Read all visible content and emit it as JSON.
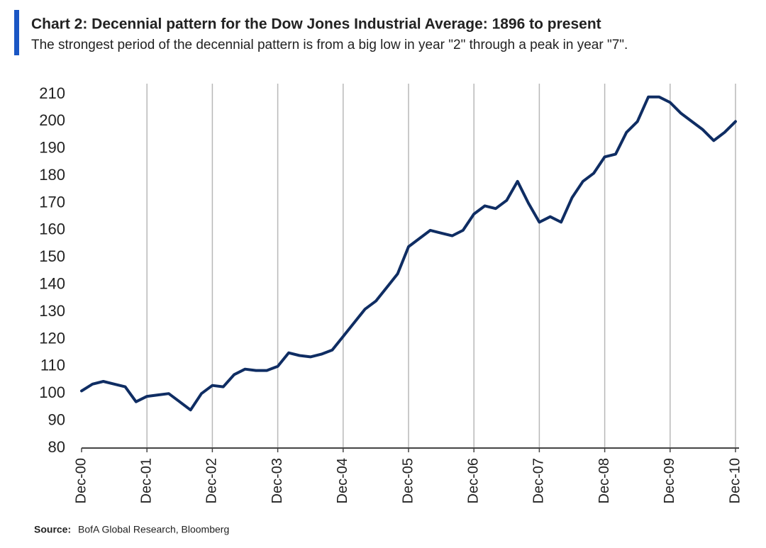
{
  "chart_data": {
    "type": "line",
    "title": "Chart 2: Decennial pattern for the Dow Jones Industrial Average: 1896 to present",
    "subtitle": "The strongest period of the decennial pattern is from a big low in year \"2\" through a peak in year \"7\".",
    "source_label": "Source:",
    "source": "BofA Global Research, Bloomberg",
    "categories": [
      "Dec-00",
      null,
      null,
      null,
      null,
      null,
      "Dec-01",
      null,
      null,
      null,
      null,
      null,
      "Dec-02",
      null,
      null,
      null,
      null,
      null,
      "Dec-03",
      null,
      null,
      null,
      null,
      null,
      "Dec-04",
      null,
      null,
      null,
      null,
      null,
      "Dec-05",
      null,
      null,
      null,
      null,
      null,
      "Dec-06",
      null,
      null,
      null,
      null,
      null,
      "Dec-07",
      null,
      null,
      null,
      null,
      null,
      "Dec-08",
      null,
      null,
      null,
      null,
      null,
      "Dec-09",
      null,
      null,
      null,
      null,
      null,
      "Dec-10"
    ],
    "values": [
      101,
      103.5,
      104.5,
      103.5,
      102.5,
      97,
      99,
      99.5,
      100,
      97,
      94,
      100,
      103,
      102.5,
      107,
      109,
      108.5,
      108.5,
      110,
      115,
      114,
      113.5,
      114.5,
      116,
      121,
      126,
      131,
      134,
      139,
      144,
      154,
      157,
      160,
      159,
      158,
      160,
      166,
      169,
      168,
      171,
      178,
      170,
      163,
      165,
      163,
      172,
      178,
      181,
      187,
      188,
      196,
      200,
      209,
      209,
      207,
      203,
      200,
      197,
      193,
      196,
      200
    ],
    "color": "#0f2d63",
    "ylim": [
      80,
      210
    ],
    "yticks": [
      80,
      90,
      100,
      110,
      120,
      130,
      140,
      150,
      160,
      170,
      180,
      190,
      200,
      210
    ],
    "grid": true
  }
}
